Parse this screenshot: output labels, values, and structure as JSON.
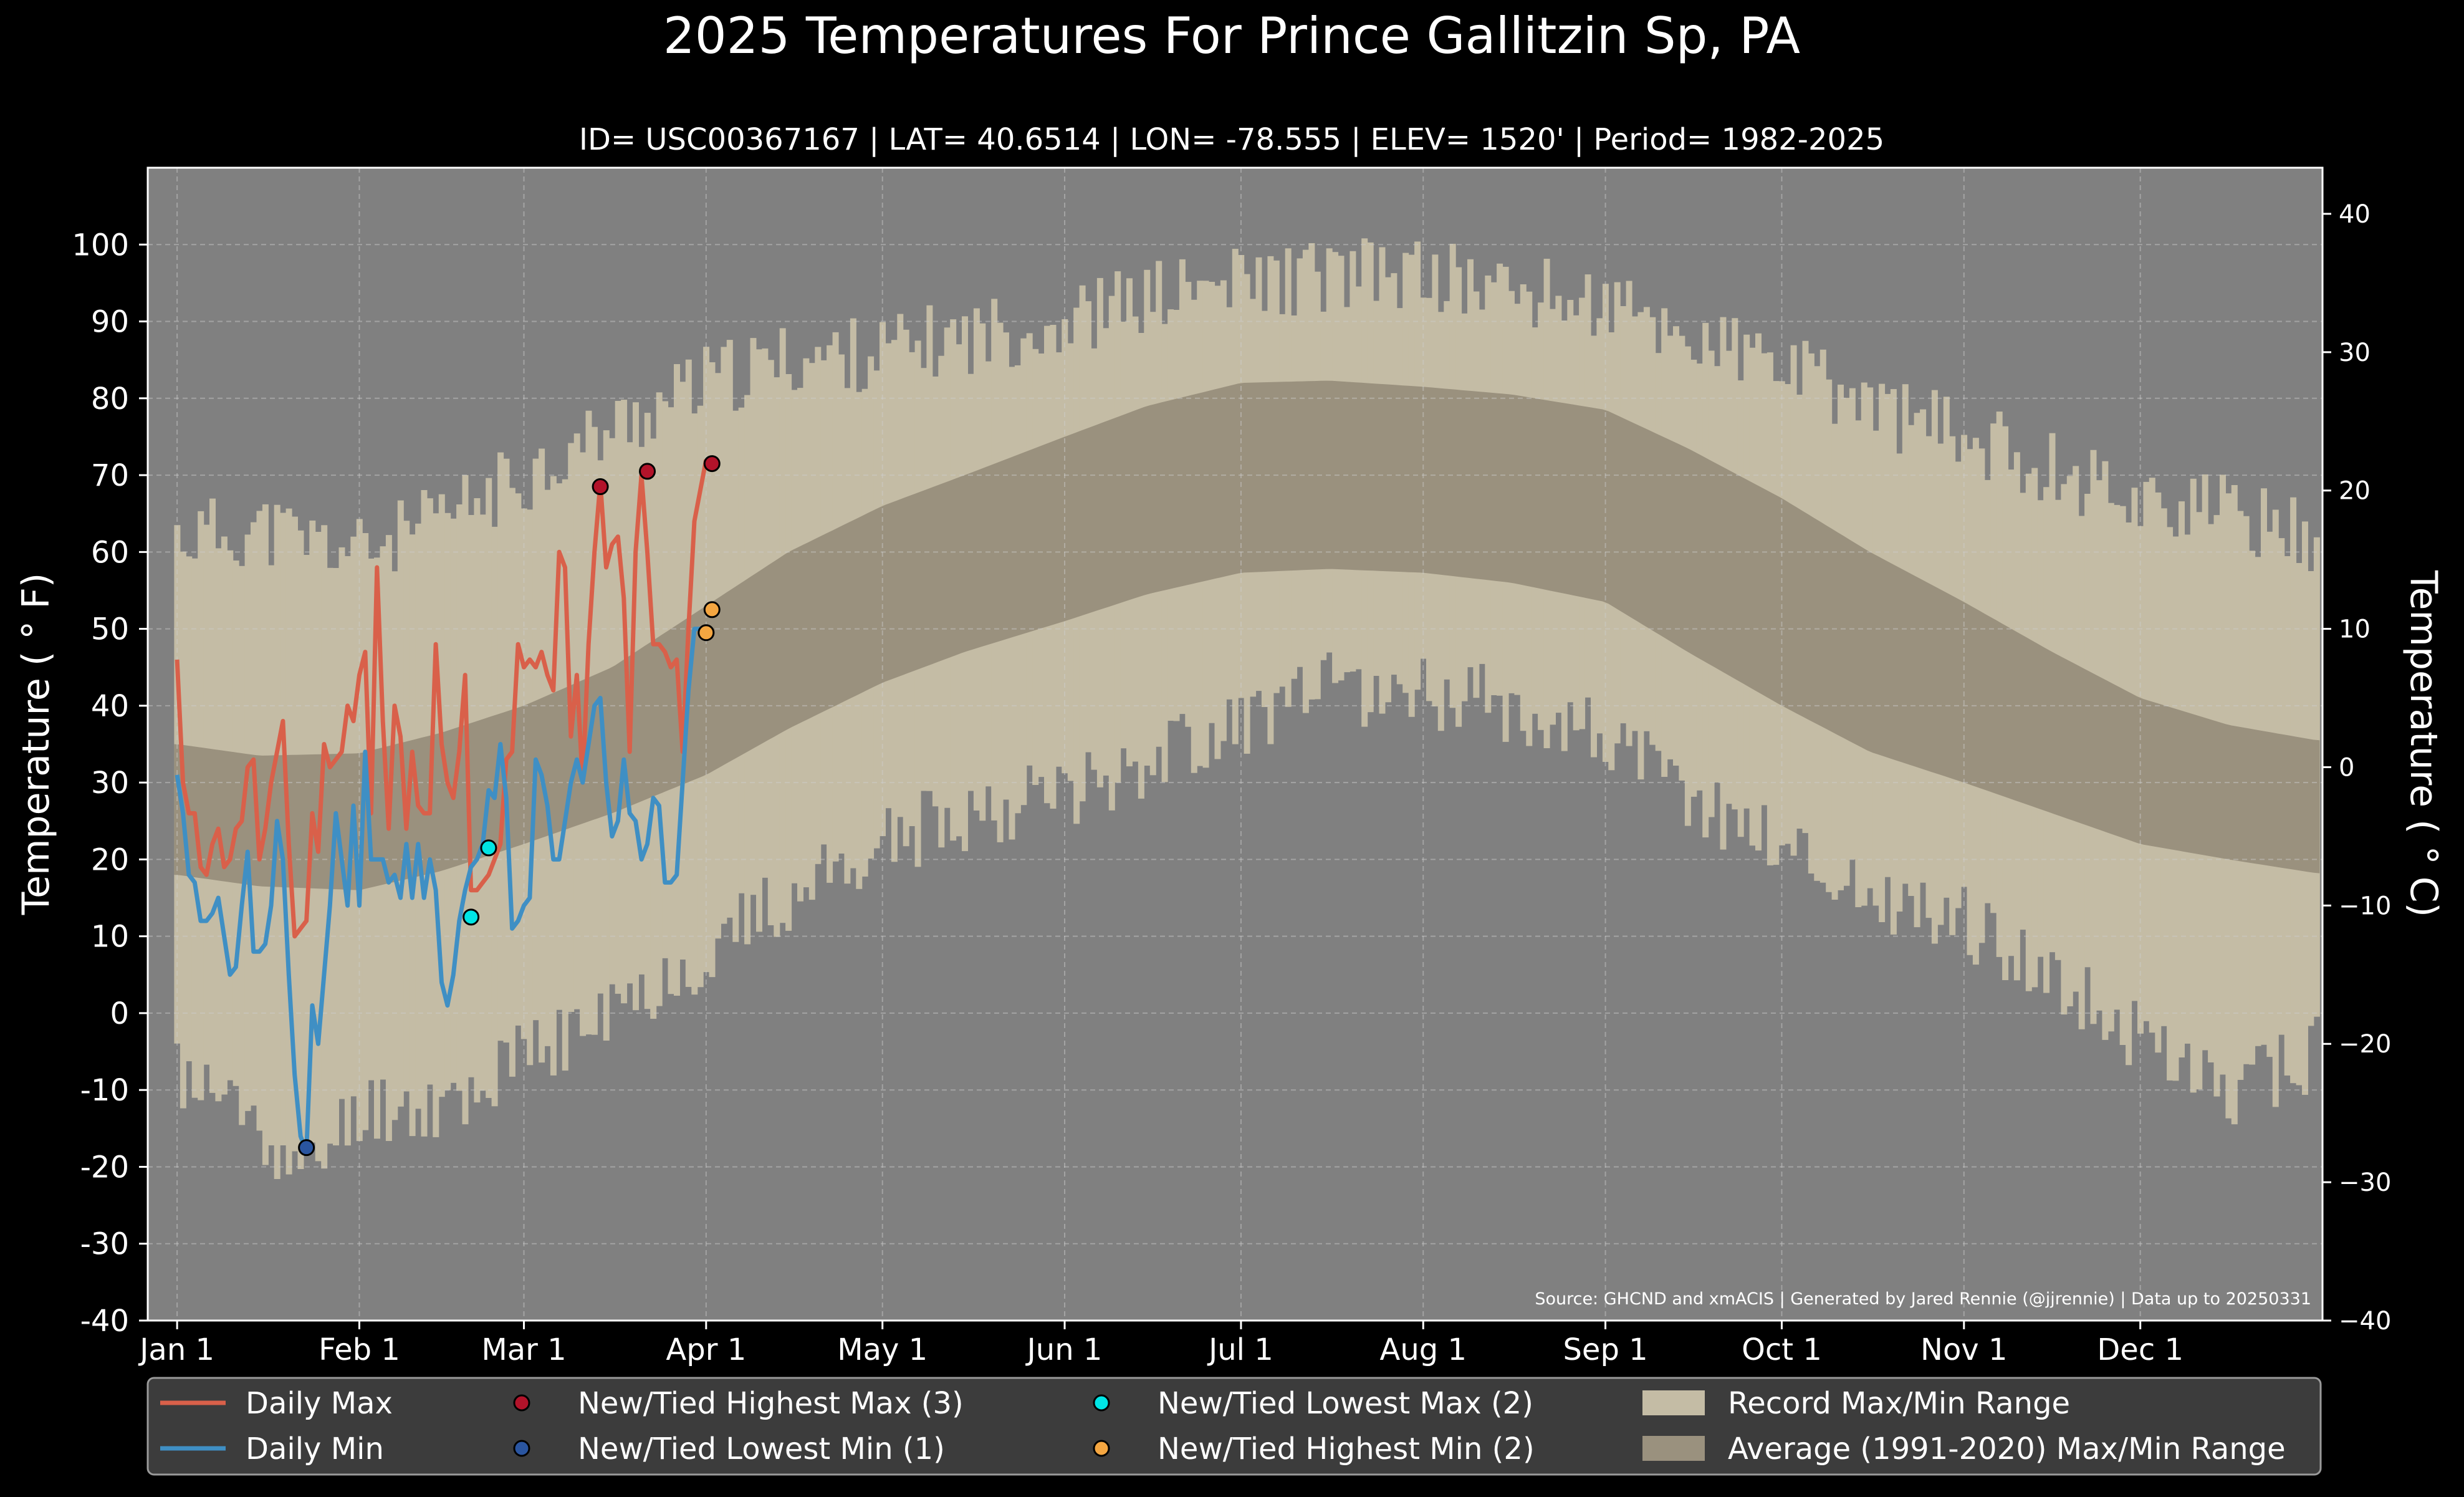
{
  "chart_data": {
    "type": "area",
    "title": "2025 Temperatures For Prince Gallitzin Sp, PA",
    "subtitle": "ID= USC00367167 | LAT= 40.6514 | LON= -78.555 | ELEV= 1520' | Period= 1982-2025",
    "ylabel_left": "Temperature ($^\\circ$F)",
    "ylabel_right": "Temperature ($^\\circ$C)",
    "ylabel_left_text": "Temperature ( ° F)",
    "ylabel_right_text": "Temperature ( ° C)",
    "source": "Source: GHCND and xmACIS | Generated by Jared Rennie (@jjrennie) | Data up to 20250331",
    "ylim_f": [
      -40,
      110
    ],
    "xlim_day": [
      -4,
      366
    ],
    "grid": true,
    "y_ticks_f": [
      100,
      90,
      80,
      70,
      60,
      50,
      40,
      30,
      20,
      10,
      0,
      -10,
      -20,
      -30,
      -40
    ],
    "y_tick_labels_f": [
      "100",
      "90",
      "80",
      "70",
      "60",
      "50",
      "40",
      "30",
      "20",
      "10",
      "0",
      "-10",
      "-20",
      "-30",
      "-40"
    ],
    "y_ticks_c": [
      40,
      30,
      20,
      10,
      0,
      -10,
      -20,
      -30,
      -40
    ],
    "y_tick_labels_c": [
      "40",
      "30",
      "20",
      "10",
      "0",
      "−10",
      "−20",
      "−30",
      "−40"
    ],
    "x_ticks": [
      {
        "label": "Jan 1",
        "day": 1
      },
      {
        "label": "Feb 1",
        "day": 32
      },
      {
        "label": "Mar 1",
        "day": 60
      },
      {
        "label": "Apr 1",
        "day": 91
      },
      {
        "label": "May 1",
        "day": 121
      },
      {
        "label": "Jun 1",
        "day": 152
      },
      {
        "label": "Jul 1",
        "day": 182
      },
      {
        "label": "Aug 1",
        "day": 213
      },
      {
        "label": "Sep 1",
        "day": 244
      },
      {
        "label": "Oct 1",
        "day": 274
      },
      {
        "label": "Nov 1",
        "day": 305
      },
      {
        "label": "Dec 1",
        "day": 335
      }
    ],
    "record_max_anchor": {
      "day": [
        1,
        15,
        32,
        46,
        60,
        75,
        91,
        105,
        121,
        135,
        152,
        166,
        182,
        197,
        213,
        228,
        244,
        258,
        274,
        289,
        305,
        320,
        335,
        350,
        365
      ],
      "temp_f": [
        62,
        63,
        60,
        64,
        70,
        76,
        82,
        85,
        86,
        88,
        90,
        93,
        95,
        96,
        96,
        94,
        92,
        88,
        84,
        79,
        75,
        71,
        67,
        65,
        62
      ]
    },
    "record_min_anchor": {
      "day": [
        1,
        15,
        22,
        32,
        46,
        60,
        75,
        91,
        105,
        121,
        135,
        152,
        166,
        182,
        197,
        213,
        228,
        244,
        258,
        274,
        289,
        305,
        320,
        335,
        350,
        365
      ],
      "temp_f": [
        -8,
        -14,
        -22,
        -12,
        -12,
        -6,
        0,
        8,
        15,
        22,
        26,
        29,
        33,
        38,
        42,
        42,
        40,
        36,
        28,
        22,
        15,
        12,
        5,
        -4,
        -10,
        -5
      ]
    },
    "normal_max_anchor": {
      "day": [
        1,
        15,
        32,
        46,
        60,
        75,
        91,
        105,
        121,
        135,
        152,
        166,
        182,
        197,
        213,
        228,
        244,
        258,
        274,
        289,
        305,
        320,
        335,
        350,
        365
      ],
      "temp_f": [
        35,
        33.5,
        33.8,
        36.5,
        40,
        45,
        53,
        60,
        66,
        70,
        75,
        79,
        82,
        82.3,
        81.5,
        80.5,
        78.5,
        73.5,
        67,
        60,
        53.5,
        47,
        41,
        37.5,
        35.5
      ]
    },
    "normal_min_anchor": {
      "day": [
        1,
        15,
        32,
        46,
        60,
        75,
        91,
        105,
        121,
        135,
        152,
        166,
        182,
        197,
        213,
        228,
        244,
        258,
        274,
        289,
        305,
        320,
        335,
        350,
        365
      ],
      "temp_f": [
        18,
        16.5,
        16,
        18.5,
        22,
        26,
        31,
        37,
        43,
        47,
        51,
        54.5,
        57.3,
        57.8,
        57.3,
        56,
        53.5,
        47,
        40,
        34,
        30,
        26,
        22,
        20,
        18.2
      ]
    },
    "series": [
      {
        "name": "Daily Max",
        "color": "#d9604a",
        "day": [
          1,
          2,
          3,
          4,
          5,
          6,
          7,
          8,
          9,
          10,
          11,
          12,
          13,
          14,
          15,
          16,
          17,
          18,
          19,
          20,
          21,
          22,
          23,
          24,
          25,
          26,
          27,
          28,
          29,
          30,
          31,
          32,
          33,
          34,
          35,
          36,
          37,
          38,
          39,
          40,
          41,
          42,
          43,
          44,
          45,
          46,
          47,
          48,
          49,
          50,
          51,
          52,
          53,
          54,
          55,
          56,
          57,
          58,
          59,
          60,
          61,
          62,
          63,
          64,
          65,
          66,
          67,
          68,
          69,
          70,
          71,
          72,
          73,
          74,
          75,
          76,
          77,
          78,
          79,
          80,
          81,
          82,
          83,
          84,
          85,
          86,
          87,
          88,
          89,
          90,
          91
        ],
        "values": [
          46,
          30,
          26,
          26,
          19,
          18,
          22,
          24,
          19,
          20,
          24,
          25,
          32,
          33,
          20,
          24,
          30,
          34,
          38,
          22,
          10,
          11,
          12,
          26,
          21,
          35,
          32,
          33,
          34,
          40,
          38,
          44,
          47,
          26,
          58,
          38,
          24,
          40,
          36,
          24,
          34,
          27,
          26,
          26,
          48,
          35,
          30,
          28,
          34,
          44,
          16,
          16,
          17,
          18,
          20,
          22,
          33,
          34,
          48,
          45,
          46,
          45,
          47,
          44,
          42,
          60,
          58,
          36,
          44,
          30,
          48,
          60,
          69,
          58,
          61,
          62,
          54,
          34,
          60,
          70,
          60,
          48,
          48,
          47,
          45,
          46,
          34,
          50,
          64,
          68,
          72
        ]
      },
      {
        "name": "Daily Min",
        "color": "#3f8fc4",
        "day": [
          1,
          2,
          3,
          4,
          5,
          6,
          7,
          8,
          9,
          10,
          11,
          12,
          13,
          14,
          15,
          16,
          17,
          18,
          19,
          20,
          21,
          22,
          23,
          24,
          25,
          26,
          27,
          28,
          29,
          30,
          31,
          32,
          33,
          34,
          35,
          36,
          37,
          38,
          39,
          40,
          41,
          42,
          43,
          44,
          45,
          46,
          47,
          48,
          49,
          50,
          51,
          52,
          53,
          54,
          55,
          56,
          57,
          58,
          59,
          60,
          61,
          62,
          63,
          64,
          65,
          66,
          67,
          68,
          69,
          70,
          71,
          72,
          73,
          74,
          75,
          76,
          77,
          78,
          79,
          80,
          81,
          82,
          83,
          84,
          85,
          86,
          87,
          88,
          89,
          90,
          91
        ],
        "values": [
          31,
          26,
          18,
          17,
          12,
          12,
          13,
          15,
          10,
          5,
          6,
          14,
          21,
          8,
          8,
          9,
          14,
          25,
          20,
          5,
          -8,
          -16,
          -18,
          1,
          -4,
          5,
          14,
          26,
          20,
          14,
          27,
          14,
          34,
          20,
          20,
          20,
          17,
          18,
          15,
          22,
          15,
          22,
          15,
          20,
          16,
          4,
          1,
          5,
          12,
          16,
          19,
          20,
          22,
          29,
          28,
          35,
          28,
          11,
          12,
          14,
          15,
          33,
          31,
          27,
          20,
          20,
          25,
          30,
          33,
          30,
          35,
          40,
          41,
          30,
          23,
          25,
          33,
          26,
          25,
          20,
          22,
          28,
          27,
          17,
          17,
          18,
          30,
          42,
          50,
          50,
          50
        ]
      },
      {
        "name": "New/Tied Highest Max (3)",
        "type": "scatter",
        "color": "#b2132a",
        "day": [
          73,
          81,
          92
        ],
        "values": [
          68.5,
          70.5,
          71.5
        ]
      },
      {
        "name": "New/Tied Lowest Min (1)",
        "type": "scatter",
        "color": "#2a55a0",
        "day": [
          23
        ],
        "values": [
          -17.5
        ]
      },
      {
        "name": "New/Tied Lowest Max (2)",
        "type": "scatter",
        "color": "#00e5e5",
        "day": [
          51,
          54
        ],
        "values": [
          12.5,
          21.5
        ]
      },
      {
        "name": "New/Tied Highest Min (2)",
        "type": "scatter",
        "color": "#f4a641",
        "day": [
          91,
          92
        ],
        "values": [
          49.5,
          52.5
        ]
      }
    ],
    "legend": {
      "placement": "bottom",
      "entries": [
        {
          "label": "Daily Max",
          "kind": "line",
          "color": "#d9604a"
        },
        {
          "label": "Daily Min",
          "kind": "line",
          "color": "#3f8fc4"
        },
        {
          "label": "New/Tied Highest Max (3)",
          "kind": "dot",
          "color": "#b2132a"
        },
        {
          "label": "New/Tied Lowest Min (1)",
          "kind": "dot",
          "color": "#2a55a0"
        },
        {
          "label": "New/Tied Lowest Max (2)",
          "kind": "dot",
          "color": "#00e5e5"
        },
        {
          "label": "New/Tied Highest Min (2)",
          "kind": "dot",
          "color": "#f4a641"
        },
        {
          "label": "Record Max/Min Range",
          "kind": "patch",
          "color": "#c4bca5"
        },
        {
          "label": "Average (1991-2020) Max/Min Range",
          "kind": "patch",
          "color": "#9a917e"
        }
      ]
    },
    "colors": {
      "background": "#000000",
      "plot_background": "#808080",
      "record_band": "#c4bca5",
      "normal_band": "#9a917e",
      "text": "#ffffff",
      "legend_background": "#3c3c3c"
    }
  }
}
